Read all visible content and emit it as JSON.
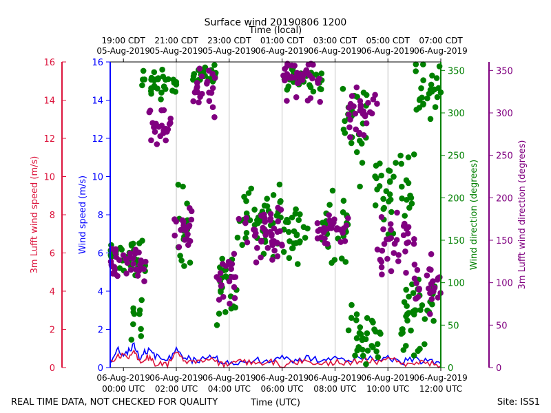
{
  "chart_data": {
    "type": "scatter",
    "title": "Surface wind 20190806 1200",
    "top_xlabel": "Time (local)",
    "xlabel": "Time (UTC)",
    "left_outer_ylabel": "3m Lufft wind speed (m/s)",
    "left_inner_ylabel": "Wind speed (m/s)",
    "right_inner_ylabel": "Wind direction (degrees)",
    "right_outer_ylabel": "3m Lufft wind direction (degrees)",
    "xlim_hours": [
      -0.5,
      12.0
    ],
    "speed_ylim": [
      0,
      16
    ],
    "dir_ylim": [
      0,
      360
    ],
    "speed_ticks": [
      "0",
      "2",
      "4",
      "6",
      "8",
      "10",
      "12",
      "14",
      "16"
    ],
    "dir_ticks": [
      "0",
      "50",
      "100",
      "150",
      "200",
      "250",
      "300",
      "350"
    ],
    "bottom_ticks": [
      {
        "hour": 0,
        "line1": "06-Aug-2019",
        "line2": "00:00 UTC"
      },
      {
        "hour": 2,
        "line1": "06-Aug-2019",
        "line2": "02:00 UTC"
      },
      {
        "hour": 4,
        "line1": "06-Aug-2019",
        "line2": "04:00 UTC"
      },
      {
        "hour": 6,
        "line1": "06-Aug-2019",
        "line2": "06:00 UTC"
      },
      {
        "hour": 8,
        "line1": "06-Aug-2019",
        "line2": "08:00 UTC"
      },
      {
        "hour": 10,
        "line1": "06-Aug-2019",
        "line2": "10:00 UTC"
      },
      {
        "hour": 12,
        "line1": "06-Aug-2019",
        "line2": "12:00 UTC"
      }
    ],
    "top_ticks": [
      {
        "hour": 0,
        "line1": "19:00 CDT",
        "line2": "05-Aug-2019"
      },
      {
        "hour": 2,
        "line1": "21:00 CDT",
        "line2": "05-Aug-2019"
      },
      {
        "hour": 4,
        "line1": "23:00 CDT",
        "line2": "05-Aug-2019"
      },
      {
        "hour": 6,
        "line1": "01:00 CDT",
        "line2": "06-Aug-2019"
      },
      {
        "hour": 8,
        "line1": "03:00 CDT",
        "line2": "06-Aug-2019"
      },
      {
        "hour": 10,
        "line1": "05:00 CDT",
        "line2": "06-Aug-2019"
      },
      {
        "hour": 12,
        "line1": "07:00 CDT",
        "line2": "06-Aug-2019"
      }
    ],
    "vgrid_hours": [
      2,
      4,
      6,
      8,
      10
    ],
    "colors": {
      "wind_speed": "#0000ff",
      "lufft_speed": "#dc143c",
      "wind_direction": "#008000",
      "lufft_direction": "#800080",
      "grid": "#b0b0b0"
    },
    "series": [
      {
        "name": "Wind speed (m/s)",
        "kind": "line",
        "axis": "speed",
        "color": "#0000ff",
        "t": [
          -0.5,
          -0.2,
          0.1,
          0.4,
          0.6,
          0.9,
          1.2,
          1.6,
          2.0,
          2.4,
          2.8,
          3.2,
          3.6,
          4.0,
          4.5,
          5.0,
          5.5,
          6.0,
          6.5,
          7.0,
          7.5,
          8.0,
          8.5,
          9.0,
          9.5,
          10.0,
          10.5,
          11.0,
          11.5,
          12.0
        ],
        "v": [
          0.2,
          0.9,
          0.7,
          1.2,
          0.5,
          0.9,
          0.6,
          0.3,
          0.9,
          0.5,
          0.3,
          0.7,
          0.4,
          0.2,
          0.3,
          0.4,
          0.3,
          0.5,
          0.3,
          0.5,
          0.4,
          0.6,
          0.3,
          0.6,
          0.4,
          0.5,
          0.3,
          0.4,
          0.3,
          0.2
        ]
      },
      {
        "name": "3m Lufft wind speed (m/s)",
        "kind": "line",
        "axis": "speed",
        "color": "#dc143c",
        "t": [
          -0.5,
          -0.2,
          0.1,
          0.4,
          0.6,
          0.9,
          1.2,
          1.6,
          2.0,
          2.4,
          2.8,
          3.2,
          3.6,
          4.0,
          4.5,
          5.0,
          5.5,
          6.0,
          6.5,
          7.0,
          7.5,
          8.0,
          8.5,
          9.0,
          9.5,
          10.0,
          10.5,
          11.0,
          11.5,
          12.0
        ],
        "v": [
          0.3,
          0.7,
          0.5,
          0.9,
          0.3,
          0.6,
          0.2,
          0.1,
          0.7,
          0.3,
          0.4,
          0.5,
          0.2,
          0.1,
          0.3,
          0.2,
          0.4,
          0.1,
          0.3,
          0.4,
          0.2,
          0.3,
          0.2,
          0.4,
          0.3,
          0.5,
          0.2,
          0.3,
          0.2,
          0.1
        ]
      },
      {
        "name": "Wind direction (degrees)",
        "kind": "scatter",
        "axis": "dir",
        "color": "#008000",
        "segments": [
          {
            "t0": -0.5,
            "t1": 0.9,
            "center": 130,
            "spread": 25
          },
          {
            "t0": 0.3,
            "t1": 0.7,
            "center": 60,
            "spread": 40
          },
          {
            "t0": 0.7,
            "t1": 2.0,
            "center": 335,
            "spread": 20
          },
          {
            "t0": 2.0,
            "t1": 2.6,
            "center": 160,
            "spread": 90
          },
          {
            "t0": 2.6,
            "t1": 3.5,
            "center": 345,
            "spread": 15
          },
          {
            "t0": 3.5,
            "t1": 4.3,
            "center": 100,
            "spread": 60
          },
          {
            "t0": 4.3,
            "t1": 6.0,
            "center": 175,
            "spread": 45
          },
          {
            "t0": 6.0,
            "t1": 7.5,
            "center": 340,
            "spread": 18
          },
          {
            "t0": 6.0,
            "t1": 7.0,
            "center": 155,
            "spread": 45
          },
          {
            "t0": 7.5,
            "t1": 8.5,
            "center": 165,
            "spread": 50
          },
          {
            "t0": 8.2,
            "t1": 9.2,
            "center": 270,
            "spread": 80
          },
          {
            "t0": 8.5,
            "t1": 9.8,
            "center": 40,
            "spread": 40
          },
          {
            "t0": 9.5,
            "t1": 11.0,
            "center": 210,
            "spread": 60
          },
          {
            "t0": 10.5,
            "t1": 12.0,
            "center": 60,
            "spread": 60
          },
          {
            "t0": 11.0,
            "t1": 12.0,
            "center": 330,
            "spread": 40
          }
        ]
      },
      {
        "name": "3m Lufft wind direction (degrees)",
        "kind": "scatter",
        "axis": "dir",
        "color": "#800080",
        "segments": [
          {
            "t0": -0.5,
            "t1": 0.9,
            "center": 125,
            "spread": 25
          },
          {
            "t0": 0.9,
            "t1": 1.8,
            "center": 285,
            "spread": 30
          },
          {
            "t0": 1.8,
            "t1": 2.6,
            "center": 160,
            "spread": 35
          },
          {
            "t0": 2.6,
            "t1": 3.5,
            "center": 330,
            "spread": 40
          },
          {
            "t0": 3.5,
            "t1": 4.3,
            "center": 105,
            "spread": 40
          },
          {
            "t0": 4.3,
            "t1": 6.0,
            "center": 160,
            "spread": 40
          },
          {
            "t0": 6.0,
            "t1": 7.5,
            "center": 335,
            "spread": 30
          },
          {
            "t0": 7.3,
            "t1": 8.5,
            "center": 165,
            "spread": 25
          },
          {
            "t0": 8.5,
            "t1": 9.6,
            "center": 300,
            "spread": 40
          },
          {
            "t0": 9.6,
            "t1": 11.0,
            "center": 145,
            "spread": 40
          },
          {
            "t0": 11.0,
            "t1": 12.0,
            "center": 100,
            "spread": 50
          }
        ]
      }
    ]
  },
  "footer": {
    "left_note": "REAL TIME DATA, NOT CHECKED FOR QUALITY",
    "site": "Site: ISS1"
  }
}
